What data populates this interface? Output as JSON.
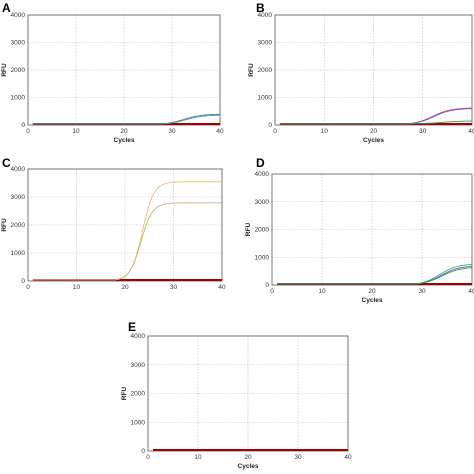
{
  "figure": {
    "colors": {
      "baseline": "#a40000",
      "blue": "#4a6fb5",
      "teal": "#4aa89a",
      "pink": "#c25a9a",
      "green": "#3d9a4a",
      "purple": "#7a5cb0",
      "yellow": "#e4c16a",
      "olive": "#c9b37a"
    }
  },
  "chart_data": [
    {
      "type": "line",
      "panel": "A",
      "xlabel": "Cycles",
      "ylabel": "RFU",
      "xlim": [
        0,
        40
      ],
      "ylim": [
        0,
        4000
      ],
      "x_ticks": [
        "0",
        "10",
        "20",
        "30",
        "40"
      ],
      "y_ticks": [
        "0",
        "1000",
        "2000",
        "3000",
        "4000"
      ],
      "grid": true,
      "baseline": {
        "value": 0,
        "x_start": 1,
        "x_end": 40
      },
      "series": [
        {
          "color": "blue",
          "start_cycle": 28,
          "plateau": 350,
          "midpoint": 32.5,
          "steepness": 0.55
        },
        {
          "color": "teal",
          "start_cycle": 28,
          "plateau": 320,
          "midpoint": 33,
          "steepness": 0.55
        }
      ]
    },
    {
      "type": "line",
      "panel": "B",
      "xlabel": "Cycles",
      "ylabel": "RFU",
      "xlim": [
        0,
        40
      ],
      "ylim": [
        0,
        4000
      ],
      "x_ticks": [
        "0",
        "10",
        "20",
        "30",
        "40"
      ],
      "y_ticks": [
        "0",
        "1000",
        "2000",
        "3000",
        "4000"
      ],
      "grid": true,
      "baseline": {
        "value": 0,
        "x_start": 1,
        "x_end": 40
      },
      "series": [
        {
          "color": "pink",
          "start_cycle": 27,
          "plateau": 580,
          "midpoint": 32,
          "steepness": 0.55
        },
        {
          "color": "purple",
          "start_cycle": 27,
          "plateau": 560,
          "midpoint": 32.3,
          "steepness": 0.55
        },
        {
          "color": "green",
          "start_cycle": 27,
          "plateau": 110,
          "midpoint": 34,
          "steepness": 0.45
        }
      ]
    },
    {
      "type": "line",
      "panel": "C",
      "xlabel": "",
      "ylabel": "RFU",
      "xlim": [
        0,
        40
      ],
      "ylim": [
        0,
        4000
      ],
      "x_ticks": [
        "0",
        "10",
        "20",
        "30",
        "40"
      ],
      "y_ticks": [
        "0",
        "1000",
        "2000",
        "3000",
        "4000"
      ],
      "grid": true,
      "baseline": {
        "value": 0,
        "x_start": 1,
        "x_end": 40
      },
      "series": [
        {
          "color": "yellow",
          "start_cycle": 18,
          "plateau": 3500,
          "midpoint": 23.6,
          "steepness": 0.85
        },
        {
          "color": "olive",
          "start_cycle": 18,
          "plateau": 2750,
          "midpoint": 23.3,
          "steepness": 0.85
        }
      ]
    },
    {
      "type": "line",
      "panel": "D",
      "xlabel": "Cycles",
      "ylabel": "RFU",
      "xlim": [
        0,
        40
      ],
      "ylim": [
        0,
        4000
      ],
      "x_ticks": [
        "0",
        "10",
        "20",
        "30",
        "40"
      ],
      "y_ticks": [
        "0",
        "1000",
        "2000",
        "3000",
        "4000"
      ],
      "grid": true,
      "baseline": {
        "value": 0,
        "x_start": 1,
        "x_end": 40
      },
      "series": [
        {
          "color": "teal",
          "start_cycle": 29,
          "plateau": 720,
          "midpoint": 33.5,
          "steepness": 0.55
        },
        {
          "color": "blue",
          "start_cycle": 29,
          "plateau": 650,
          "midpoint": 33.8,
          "steepness": 0.55
        },
        {
          "color": "green",
          "start_cycle": 29,
          "plateau": 600,
          "midpoint": 34,
          "steepness": 0.55
        }
      ]
    },
    {
      "type": "line",
      "panel": "E",
      "xlabel": "Cycles",
      "ylabel": "RFU",
      "xlim": [
        0,
        40
      ],
      "ylim": [
        0,
        4000
      ],
      "x_ticks": [
        "0",
        "10",
        "20",
        "30",
        "40"
      ],
      "y_ticks": [
        "0",
        "1000",
        "2000",
        "3000",
        "4000"
      ],
      "grid": true,
      "baseline": {
        "value": 0,
        "x_start": 1,
        "x_end": 40
      },
      "series": []
    }
  ]
}
